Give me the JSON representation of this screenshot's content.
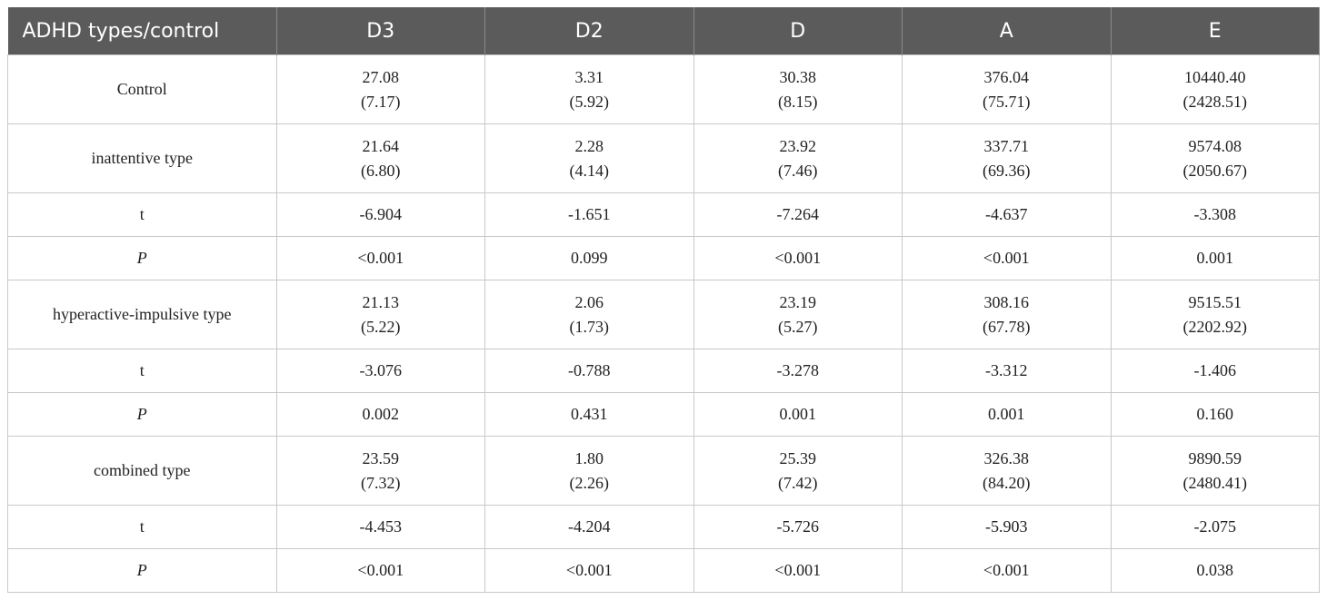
{
  "table": {
    "header": [
      "ADHD types/control",
      "D3",
      "D2",
      "D",
      "A",
      "E"
    ],
    "rows": [
      {
        "label": "Control",
        "cells": [
          [
            "27.08",
            "(7.17)"
          ],
          [
            "3.31",
            "(5.92)"
          ],
          [
            "30.38",
            "(8.15)"
          ],
          [
            "376.04",
            "(75.71)"
          ],
          [
            "10440.40",
            "(2428.51)"
          ]
        ]
      },
      {
        "label": "inattentive type",
        "cells": [
          [
            "21.64",
            "(6.80)"
          ],
          [
            "2.28",
            "(4.14)"
          ],
          [
            "23.92",
            "(7.46)"
          ],
          [
            "337.71",
            "(69.36)"
          ],
          [
            "9574.08",
            "(2050.67)"
          ]
        ]
      },
      {
        "label": "t",
        "cells": [
          [
            "-6.904"
          ],
          [
            "-1.651"
          ],
          [
            "-7.264"
          ],
          [
            "-4.637"
          ],
          [
            "-3.308"
          ]
        ]
      },
      {
        "label": "P",
        "cells": [
          [
            "<0.001"
          ],
          [
            "0.099"
          ],
          [
            "<0.001"
          ],
          [
            "<0.001"
          ],
          [
            "0.001"
          ]
        ]
      },
      {
        "label": "hyperactive-impulsive type",
        "cells": [
          [
            "21.13",
            "(5.22)"
          ],
          [
            "2.06",
            "(1.73)"
          ],
          [
            "23.19",
            "(5.27)"
          ],
          [
            "308.16",
            "(67.78)"
          ],
          [
            "9515.51",
            "(2202.92)"
          ]
        ]
      },
      {
        "label": "t",
        "cells": [
          [
            "-3.076"
          ],
          [
            "-0.788"
          ],
          [
            "-3.278"
          ],
          [
            "-3.312"
          ],
          [
            "-1.406"
          ]
        ]
      },
      {
        "label": "P",
        "cells": [
          [
            "0.002"
          ],
          [
            "0.431"
          ],
          [
            "0.001"
          ],
          [
            "0.001"
          ],
          [
            "0.160"
          ]
        ]
      },
      {
        "label": "combined type",
        "cells": [
          [
            "23.59",
            "(7.32)"
          ],
          [
            "1.80",
            "(2.26)"
          ],
          [
            "25.39",
            "(7.42)"
          ],
          [
            "326.38",
            "(84.20)"
          ],
          [
            "9890.59",
            "(2480.41)"
          ]
        ]
      },
      {
        "label": "t",
        "cells": [
          [
            "-4.453"
          ],
          [
            "-4.204"
          ],
          [
            "-5.726"
          ],
          [
            "-5.903"
          ],
          [
            "-2.075"
          ]
        ]
      },
      {
        "label": "P",
        "cells": [
          [
            "<0.001"
          ],
          [
            "<0.001"
          ],
          [
            "<0.001"
          ],
          [
            "<0.001"
          ],
          [
            "0.038"
          ]
        ]
      }
    ]
  }
}
